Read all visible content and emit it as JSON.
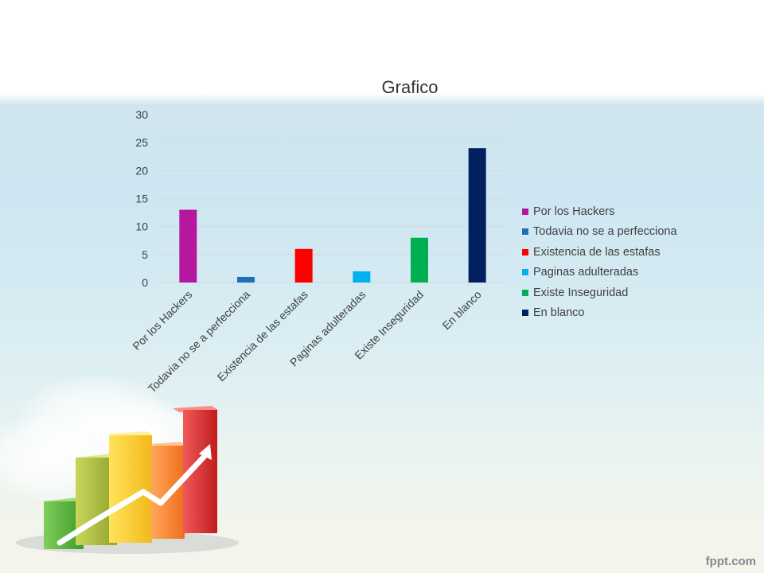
{
  "chart_data": {
    "type": "bar",
    "title": "Grafico",
    "categories": [
      "Por los Hackers",
      "Todavia no se a perfecciona",
      "Existencia de las estafas",
      "Paginas adulteradas",
      "Existe Inseguridad",
      "En blanco"
    ],
    "values": [
      13,
      1,
      6,
      2,
      8,
      24
    ],
    "colors": [
      "#b5179e",
      "#1f6fb5",
      "#ff0000",
      "#00b0f0",
      "#00b050",
      "#002060"
    ],
    "ylim": [
      0,
      30
    ],
    "yticks": [
      0,
      5,
      10,
      15,
      20,
      25,
      30
    ],
    "grid": true,
    "legend_position": "right",
    "legend": [
      "Por los Hackers",
      "Todavia no se a perfecciona",
      "Existencia de las estafas",
      "Paginas adulteradas",
      "Existe Inseguridad",
      "En blanco"
    ]
  },
  "footer": {
    "brand": "fppt.com"
  },
  "decoration": {
    "icon": "rising-bar-chart-arrow-icon"
  }
}
